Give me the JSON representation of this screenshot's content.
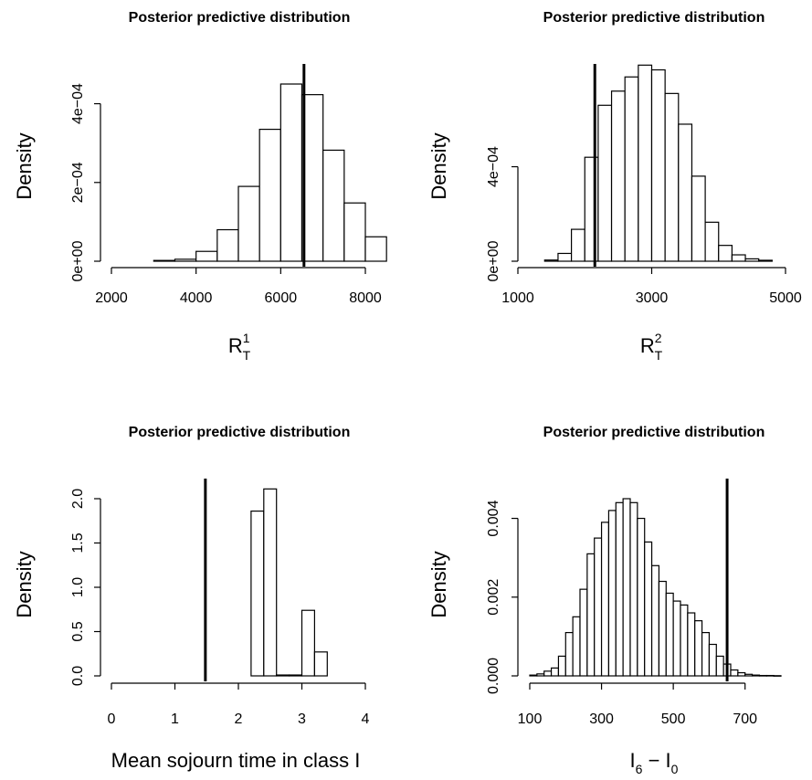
{
  "chart_data": [
    {
      "type": "bar",
      "title": "Posterior predictive distribution",
      "ylabel": "Density",
      "xlabel": {
        "base": "R",
        "sup": "1",
        "sub": "T"
      },
      "xlim": [
        2000,
        8000
      ],
      "ylim": [
        0,
        0.00045
      ],
      "xticks": [
        2000,
        4000,
        6000,
        8000
      ],
      "xtick_labels": [
        "2000",
        "4000",
        "6000",
        "8000"
      ],
      "yticks": [
        0,
        0.0002,
        0.0004
      ],
      "ytick_labels": [
        "0e+00",
        "2e−04",
        "4e−04"
      ],
      "bin_edges": [
        3000,
        3500,
        4000,
        4500,
        5000,
        5500,
        6000,
        6500,
        7000,
        7500,
        8000,
        8500
      ],
      "values": [
        2e-06,
        5e-06,
        2.5e-05,
        8e-05,
        0.00019,
        0.000335,
        0.00045,
        0.000423,
        0.000282,
        0.000148,
        6.2e-05
      ],
      "reference_line": 6550
    },
    {
      "type": "bar",
      "title": "Posterior predictive distribution",
      "ylabel": "Density",
      "xlabel": {
        "base": "R",
        "sup": "2",
        "sub": "T"
      },
      "xlim": [
        1000,
        5000
      ],
      "ylim": [
        0,
        0.00075
      ],
      "xticks": [
        1000,
        3000,
        5000
      ],
      "xtick_labels": [
        "1000",
        "3000",
        "5000"
      ],
      "yticks": [
        0,
        0.0004
      ],
      "ytick_labels": [
        "0e+00",
        "4e−04"
      ],
      "bin_edges": [
        1400,
        1600,
        1800,
        2000,
        2200,
        2400,
        2600,
        2800,
        3000,
        3200,
        3400,
        3600,
        3800,
        4000,
        4200,
        4400,
        4600,
        4800
      ],
      "values": [
        5e-06,
        3.3e-05,
        0.000135,
        0.00044,
        0.00066,
        0.00072,
        0.00078,
        0.00083,
        0.00081,
        0.00071,
        0.00058,
        0.00036,
        0.000165,
        6.7e-05,
        2.7e-05,
        1e-05,
        4e-06
      ],
      "reference_line": 2150
    },
    {
      "type": "bar",
      "title": "Posterior predictive distribution",
      "ylabel": "Density",
      "xlabel": {
        "text": "Mean sojourn time in class I"
      },
      "xlim": [
        0,
        4
      ],
      "ylim": [
        0,
        2.0
      ],
      "xticks": [
        0,
        1,
        2,
        3,
        4
      ],
      "xtick_labels": [
        "0",
        "1",
        "2",
        "3",
        "4"
      ],
      "yticks": [
        0,
        0.5,
        1.0,
        1.5,
        2.0
      ],
      "ytick_labels": [
        "0.0",
        "0.5",
        "1.0",
        "1.5",
        "2.0"
      ],
      "bin_edges": [
        2.2,
        2.4,
        2.6,
        2.8,
        3.0,
        3.2,
        3.4
      ],
      "values": [
        1.86,
        2.11,
        0.01,
        0.01,
        0.74,
        0.27
      ],
      "reference_line": 1.48
    },
    {
      "type": "bar",
      "title": "Posterior predictive distribution",
      "ylabel": "Density",
      "xlabel": {
        "base": "I",
        "sub1": "6",
        "mid": " − I",
        "sub2": "0"
      },
      "xlim": [
        100,
        800
      ],
      "ylim": [
        0,
        0.0045
      ],
      "xticks": [
        100,
        300,
        500,
        700
      ],
      "xtick_labels": [
        "100",
        "300",
        "500",
        "700"
      ],
      "yticks": [
        0,
        0.002,
        0.004
      ],
      "ytick_labels": [
        "0.000",
        "0.002",
        "0.004"
      ],
      "bin_edges": [
        100,
        120,
        140,
        160,
        180,
        200,
        220,
        240,
        260,
        280,
        300,
        320,
        340,
        360,
        380,
        400,
        420,
        440,
        460,
        480,
        500,
        520,
        540,
        560,
        580,
        600,
        620,
        640,
        660,
        680,
        700,
        720,
        740,
        760,
        780,
        800
      ],
      "values": [
        2e-05,
        5e-05,
        0.00012,
        0.0002,
        0.0005,
        0.0011,
        0.0015,
        0.0022,
        0.0031,
        0.0035,
        0.0039,
        0.0042,
        0.0044,
        0.0045,
        0.0044,
        0.004,
        0.0034,
        0.0028,
        0.0024,
        0.0021,
        0.0019,
        0.0018,
        0.0016,
        0.0014,
        0.0011,
        0.0008,
        0.0005,
        0.0003,
        0.00015,
        8e-05,
        4e-05,
        2e-05,
        1e-05,
        1e-05,
        5e-06
      ],
      "reference_line": 650
    }
  ]
}
